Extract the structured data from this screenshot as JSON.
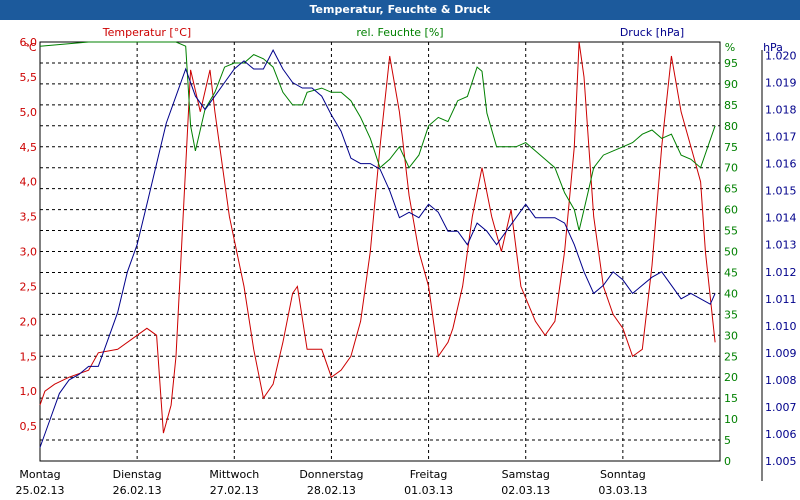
{
  "window": {
    "title": "Temperatur, Feuchte & Druck"
  },
  "chart_data": {
    "type": "line",
    "title": "Temperatur, Feuchte & Druck",
    "grid": true,
    "x_ticks": [
      {
        "day": "Montag",
        "date": "25.02.13"
      },
      {
        "day": "Dienstag",
        "date": "26.02.13"
      },
      {
        "day": "Mittwoch",
        "date": "27.02.13"
      },
      {
        "day": "Donnerstag",
        "date": "28.02.13"
      },
      {
        "day": "Freitag",
        "date": "01.03.13"
      },
      {
        "day": "Samstag",
        "date": "02.03.13"
      },
      {
        "day": "Sonntag",
        "date": "03.03.13"
      }
    ],
    "axes": {
      "temperature": {
        "label": "Temperatur [°C]",
        "unit": "°C",
        "color": "#cc0000",
        "ylim": [
          0,
          6.0
        ],
        "ticks": [
          "0,5",
          "1,0",
          "1,5",
          "2,0",
          "2,5",
          "3,0",
          "3,5",
          "4,0",
          "4,5",
          "5,0",
          "5,5",
          "6,0"
        ]
      },
      "humidity": {
        "label": "rel. Feuchte [%]",
        "unit": "%",
        "color": "#008000",
        "ylim": [
          0,
          100
        ],
        "ticks": [
          "0",
          "5",
          "10",
          "15",
          "20",
          "25",
          "30",
          "35",
          "40",
          "45",
          "50",
          "55",
          "60",
          "65",
          "70",
          "75",
          "80",
          "85",
          "90",
          "95"
        ]
      },
      "pressure": {
        "label": "Druck [hPa]",
        "unit": "hPa",
        "color": "#00008b",
        "ylim": [
          1.005,
          1.0205
        ],
        "ticks": [
          "1.005",
          "1.006",
          "1.007",
          "1.008",
          "1.009",
          "1.010",
          "1.011",
          "1.012",
          "1.013",
          "1.014",
          "1.015",
          "1.016",
          "1.017",
          "1.018",
          "1.019",
          "1.020"
        ]
      }
    },
    "series": [
      {
        "name": "Temperatur [°C]",
        "axis": "temperature",
        "color": "#cc0000",
        "points": [
          [
            0,
            0.8
          ],
          [
            0.05,
            1.0
          ],
          [
            0.15,
            1.1
          ],
          [
            0.3,
            1.2
          ],
          [
            0.5,
            1.3
          ],
          [
            0.6,
            1.55
          ],
          [
            0.8,
            1.6
          ],
          [
            1.0,
            1.8
          ],
          [
            1.1,
            1.9
          ],
          [
            1.2,
            1.8
          ],
          [
            1.27,
            0.4
          ],
          [
            1.35,
            0.8
          ],
          [
            1.4,
            1.5
          ],
          [
            1.55,
            5.6
          ],
          [
            1.65,
            5.0
          ],
          [
            1.75,
            5.6
          ],
          [
            1.8,
            5.0
          ],
          [
            1.95,
            3.5
          ],
          [
            2.1,
            2.5
          ],
          [
            2.2,
            1.6
          ],
          [
            2.3,
            0.9
          ],
          [
            2.4,
            1.1
          ],
          [
            2.5,
            1.7
          ],
          [
            2.6,
            2.4
          ],
          [
            2.65,
            2.5
          ],
          [
            2.75,
            1.6
          ],
          [
            2.9,
            1.6
          ],
          [
            3.0,
            1.2
          ],
          [
            3.1,
            1.3
          ],
          [
            3.2,
            1.5
          ],
          [
            3.3,
            2.0
          ],
          [
            3.4,
            3.0
          ],
          [
            3.5,
            4.5
          ],
          [
            3.6,
            5.8
          ],
          [
            3.7,
            5.0
          ],
          [
            3.8,
            3.8
          ],
          [
            3.9,
            3.0
          ],
          [
            4.0,
            2.5
          ],
          [
            4.1,
            1.5
          ],
          [
            4.2,
            1.7
          ],
          [
            4.25,
            1.9
          ],
          [
            4.35,
            2.5
          ],
          [
            4.45,
            3.5
          ],
          [
            4.55,
            4.2
          ],
          [
            4.65,
            3.5
          ],
          [
            4.75,
            3.0
          ],
          [
            4.85,
            3.6
          ],
          [
            4.95,
            2.5
          ],
          [
            5.1,
            2.0
          ],
          [
            5.2,
            1.8
          ],
          [
            5.3,
            2.0
          ],
          [
            5.4,
            3.0
          ],
          [
            5.5,
            4.5
          ],
          [
            5.55,
            6.0
          ],
          [
            5.6,
            5.5
          ],
          [
            5.7,
            3.5
          ],
          [
            5.8,
            2.5
          ],
          [
            5.9,
            2.1
          ],
          [
            6.0,
            1.9
          ],
          [
            6.1,
            1.5
          ],
          [
            6.2,
            1.6
          ],
          [
            6.3,
            2.8
          ],
          [
            6.4,
            4.5
          ],
          [
            6.5,
            5.8
          ],
          [
            6.6,
            5.0
          ],
          [
            6.7,
            4.5
          ],
          [
            6.8,
            4.0
          ],
          [
            6.85,
            3.0
          ],
          [
            6.95,
            1.7
          ]
        ]
      },
      {
        "name": "rel. Feuchte [%]",
        "axis": "humidity",
        "color": "#008000",
        "points": [
          [
            0,
            99
          ],
          [
            0.5,
            100
          ],
          [
            1.0,
            100
          ],
          [
            1.4,
            100
          ],
          [
            1.5,
            99
          ],
          [
            1.55,
            80
          ],
          [
            1.6,
            74
          ],
          [
            1.7,
            84
          ],
          [
            1.8,
            88
          ],
          [
            1.9,
            94
          ],
          [
            2.0,
            95
          ],
          [
            2.1,
            95
          ],
          [
            2.2,
            97
          ],
          [
            2.3,
            96
          ],
          [
            2.4,
            94
          ],
          [
            2.5,
            88
          ],
          [
            2.6,
            85
          ],
          [
            2.7,
            85
          ],
          [
            2.75,
            88
          ],
          [
            2.9,
            89
          ],
          [
            3.0,
            88
          ],
          [
            3.1,
            88
          ],
          [
            3.2,
            86
          ],
          [
            3.3,
            82
          ],
          [
            3.4,
            77
          ],
          [
            3.5,
            70
          ],
          [
            3.6,
            72
          ],
          [
            3.7,
            75
          ],
          [
            3.8,
            70
          ],
          [
            3.9,
            73
          ],
          [
            4.0,
            80
          ],
          [
            4.1,
            82
          ],
          [
            4.2,
            81
          ],
          [
            4.3,
            86
          ],
          [
            4.4,
            87
          ],
          [
            4.5,
            94
          ],
          [
            4.55,
            93
          ],
          [
            4.6,
            83
          ],
          [
            4.7,
            75
          ],
          [
            4.8,
            75
          ],
          [
            4.9,
            75
          ],
          [
            5.0,
            76
          ],
          [
            5.1,
            74
          ],
          [
            5.2,
            72
          ],
          [
            5.3,
            70
          ],
          [
            5.4,
            64
          ],
          [
            5.5,
            60
          ],
          [
            5.55,
            55
          ],
          [
            5.6,
            60
          ],
          [
            5.65,
            65
          ],
          [
            5.7,
            70
          ],
          [
            5.8,
            73
          ],
          [
            5.9,
            74
          ],
          [
            6.0,
            75
          ],
          [
            6.1,
            76
          ],
          [
            6.2,
            78
          ],
          [
            6.3,
            79
          ],
          [
            6.4,
            77
          ],
          [
            6.5,
            78
          ],
          [
            6.6,
            73
          ],
          [
            6.7,
            72
          ],
          [
            6.8,
            70
          ],
          [
            6.95,
            80
          ]
        ]
      },
      {
        "name": "Druck [hPa]",
        "axis": "pressure",
        "color": "#00008b",
        "points": [
          [
            0,
            1.0055
          ],
          [
            0.1,
            1.0065
          ],
          [
            0.2,
            1.0075
          ],
          [
            0.3,
            1.008
          ],
          [
            0.4,
            1.0082
          ],
          [
            0.5,
            1.0085
          ],
          [
            0.6,
            1.0085
          ],
          [
            0.7,
            1.0095
          ],
          [
            0.8,
            1.0105
          ],
          [
            0.9,
            1.012
          ],
          [
            1.0,
            1.013
          ],
          [
            1.1,
            1.0145
          ],
          [
            1.2,
            1.016
          ],
          [
            1.3,
            1.0175
          ],
          [
            1.4,
            1.0185
          ],
          [
            1.5,
            1.0195
          ],
          [
            1.6,
            1.0185
          ],
          [
            1.7,
            1.018
          ],
          [
            1.8,
            1.0185
          ],
          [
            1.9,
            1.019
          ],
          [
            2.0,
            1.0195
          ],
          [
            2.1,
            1.0198
          ],
          [
            2.2,
            1.0195
          ],
          [
            2.3,
            1.0195
          ],
          [
            2.4,
            1.0202
          ],
          [
            2.5,
            1.0195
          ],
          [
            2.6,
            1.019
          ],
          [
            2.7,
            1.0188
          ],
          [
            2.8,
            1.0188
          ],
          [
            2.9,
            1.0185
          ],
          [
            3.0,
            1.0178
          ],
          [
            3.1,
            1.0172
          ],
          [
            3.2,
            1.0162
          ],
          [
            3.3,
            1.016
          ],
          [
            3.4,
            1.016
          ],
          [
            3.5,
            1.0158
          ],
          [
            3.6,
            1.015
          ],
          [
            3.7,
            1.014
          ],
          [
            3.8,
            1.0142
          ],
          [
            3.9,
            1.014
          ],
          [
            4.0,
            1.0145
          ],
          [
            4.1,
            1.0142
          ],
          [
            4.2,
            1.0135
          ],
          [
            4.3,
            1.0135
          ],
          [
            4.4,
            1.013
          ],
          [
            4.5,
            1.0138
          ],
          [
            4.6,
            1.0135
          ],
          [
            4.7,
            1.013
          ],
          [
            4.8,
            1.0135
          ],
          [
            4.9,
            1.014
          ],
          [
            5.0,
            1.0145
          ],
          [
            5.1,
            1.014
          ],
          [
            5.2,
            1.014
          ],
          [
            5.3,
            1.014
          ],
          [
            5.4,
            1.0138
          ],
          [
            5.5,
            1.013
          ],
          [
            5.6,
            1.012
          ],
          [
            5.7,
            1.0112
          ],
          [
            5.8,
            1.0115
          ],
          [
            5.9,
            1.012
          ],
          [
            6.0,
            1.0117
          ],
          [
            6.1,
            1.0112
          ],
          [
            6.2,
            1.0115
          ],
          [
            6.3,
            1.0118
          ],
          [
            6.4,
            1.012
          ],
          [
            6.5,
            1.0115
          ],
          [
            6.6,
            1.011
          ],
          [
            6.7,
            1.0112
          ],
          [
            6.8,
            1.011
          ],
          [
            6.9,
            1.0108
          ],
          [
            6.95,
            1.0112
          ]
        ]
      }
    ]
  }
}
